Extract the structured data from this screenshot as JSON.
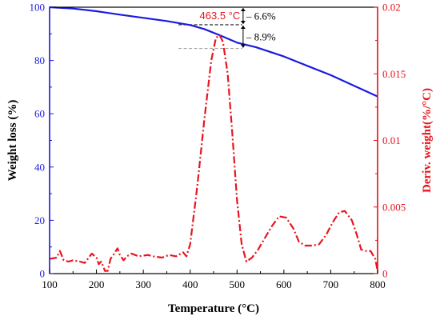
{
  "chart_data": {
    "type": "line",
    "x_axis": {
      "label": "Temperature (°C)",
      "range": [
        100,
        800
      ],
      "ticks": [
        100,
        200,
        300,
        400,
        500,
        600,
        700,
        800
      ]
    },
    "y_axis_left": {
      "label": "Weight loss (%)",
      "range": [
        0,
        100
      ],
      "ticks": [
        0,
        20,
        40,
        60,
        80,
        100
      ],
      "color": "#1a1adf"
    },
    "y_axis_right": {
      "label": "Deriv. weight(%/°C)",
      "range": [
        0,
        0.02
      ],
      "ticks": [
        "0",
        "0.005",
        "0.01",
        "0.015",
        "0.02"
      ],
      "tick_values": [
        0,
        0.005,
        0.01,
        0.015,
        0.02
      ],
      "color": "#e8141e"
    },
    "series": [
      {
        "axis": "left",
        "style": "solid",
        "color": "#1a1adf",
        "points": [
          [
            100,
            100
          ],
          [
            150,
            99.5
          ],
          [
            200,
            98.5
          ],
          [
            250,
            97.2
          ],
          [
            300,
            96
          ],
          [
            350,
            94.8
          ],
          [
            400,
            93.3
          ],
          [
            430,
            91.8
          ],
          [
            463,
            89.5
          ],
          [
            500,
            86.7
          ],
          [
            540,
            85
          ],
          [
            600,
            81.5
          ],
          [
            650,
            78
          ],
          [
            700,
            74.5
          ],
          [
            750,
            70.5
          ],
          [
            800,
            66.5
          ]
        ]
      },
      {
        "axis": "right",
        "style": "dash-dot",
        "color": "#e8141e",
        "points": [
          [
            100,
            0.0011
          ],
          [
            115,
            0.0012
          ],
          [
            122,
            0.0017
          ],
          [
            130,
            0.001
          ],
          [
            140,
            0.0009
          ],
          [
            150,
            0.001
          ],
          [
            165,
            0.0009
          ],
          [
            175,
            0.0008
          ],
          [
            190,
            0.0015
          ],
          [
            200,
            0.0012
          ],
          [
            205,
            0.0007
          ],
          [
            210,
            0.0009
          ],
          [
            215,
            0.0005
          ],
          [
            218,
            0.0002
          ],
          [
            224,
            0.0002
          ],
          [
            230,
            0.0011
          ],
          [
            238,
            0.0015
          ],
          [
            245,
            0.0019
          ],
          [
            250,
            0.0014
          ],
          [
            258,
            0.001
          ],
          [
            265,
            0.0013
          ],
          [
            275,
            0.0015
          ],
          [
            290,
            0.0013
          ],
          [
            310,
            0.0014
          ],
          [
            320,
            0.0013
          ],
          [
            340,
            0.0012
          ],
          [
            355,
            0.0014
          ],
          [
            370,
            0.0013
          ],
          [
            385,
            0.0016
          ],
          [
            392,
            0.0013
          ],
          [
            400,
            0.0022
          ],
          [
            415,
            0.0065
          ],
          [
            430,
            0.0115
          ],
          [
            445,
            0.016
          ],
          [
            455,
            0.0177
          ],
          [
            463,
            0.0179
          ],
          [
            470,
            0.0174
          ],
          [
            480,
            0.015
          ],
          [
            490,
            0.0105
          ],
          [
            500,
            0.0055
          ],
          [
            510,
            0.0022
          ],
          [
            520,
            0.0009
          ],
          [
            532,
            0.0012
          ],
          [
            545,
            0.0018
          ],
          [
            560,
            0.0027
          ],
          [
            575,
            0.0036
          ],
          [
            590,
            0.0043
          ],
          [
            605,
            0.0042
          ],
          [
            620,
            0.0034
          ],
          [
            632,
            0.0024
          ],
          [
            645,
            0.0021
          ],
          [
            660,
            0.0021
          ],
          [
            675,
            0.0022
          ],
          [
            690,
            0.0029
          ],
          [
            705,
            0.0039
          ],
          [
            718,
            0.0046
          ],
          [
            730,
            0.0047
          ],
          [
            745,
            0.004
          ],
          [
            755,
            0.003
          ],
          [
            765,
            0.0018
          ],
          [
            775,
            0.0017
          ],
          [
            785,
            0.0017
          ],
          [
            795,
            0.0011
          ],
          [
            800,
            0.0002
          ]
        ]
      }
    ],
    "reference_lines": [
      {
        "color": "#9a9a9a",
        "y": 100
      },
      {
        "color": "#1a1a1a",
        "y": 93.4
      },
      {
        "color": "#9a9a9a",
        "y": 84.5
      }
    ],
    "annotations": {
      "peak_label": "463.5 °C",
      "step1_label": "– 6.6%",
      "step2_label": "– 8.9%"
    }
  }
}
